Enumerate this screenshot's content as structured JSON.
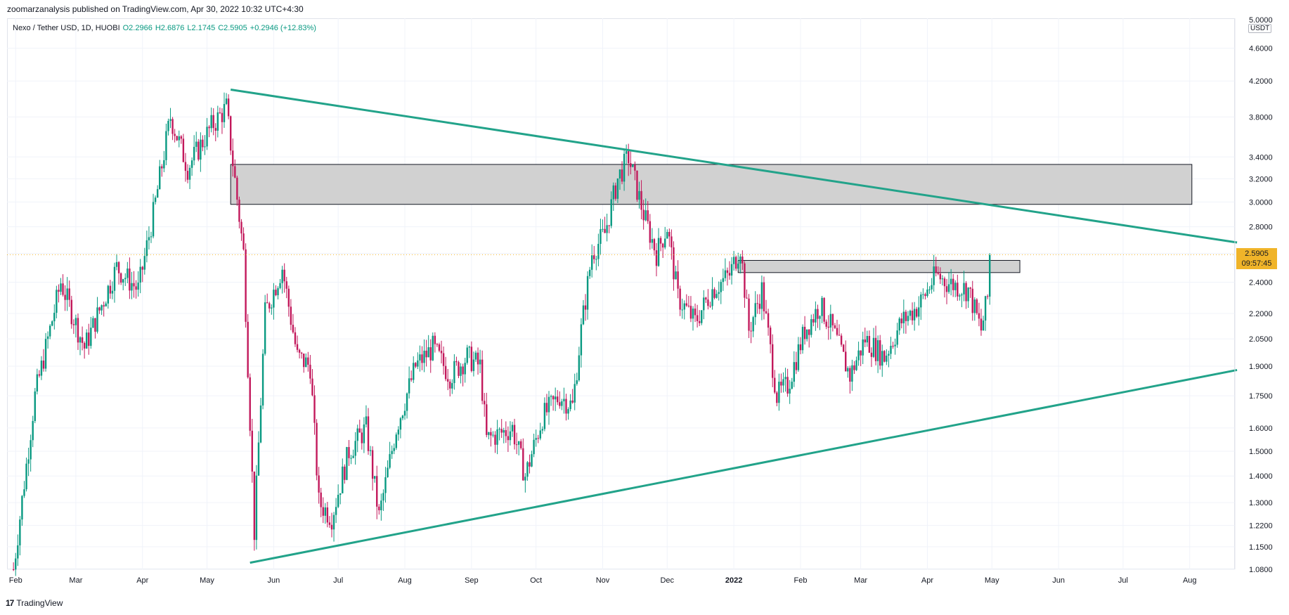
{
  "header": {
    "published": "zoomarzanalysis published on TradingView.com, Apr 30, 2022 10:32 UTC+4:30"
  },
  "legend": {
    "symbol": "Nexo / Tether USD, 1D, HUOBI",
    "open": "O2.2966",
    "high": "H2.6876",
    "low": "L2.1745",
    "close": "C2.5905",
    "change": "+0.2946 (+12.83%)"
  },
  "price_axis": {
    "unit": "USDT",
    "current_price": "2.5905",
    "countdown": "09:57:45",
    "top_label_partial": "5.0000"
  },
  "footer": {
    "brand": "TradingView",
    "logo_text": "17"
  },
  "colors": {
    "up": "#089981",
    "down": "#c2185b",
    "trendline": "#22a38a",
    "zone_fill": "#d1d1d1",
    "price_badge": "#f0b429"
  },
  "chart_data": {
    "type": "candlestick",
    "symbol": "Nexo / Tether USD",
    "interval": "1D",
    "exchange": "HUOBI",
    "scale": "log",
    "ylim": [
      1.08,
      5.0
    ],
    "y_ticks": [
      "1.0800",
      "1.1500",
      "1.2200",
      "1.3000",
      "1.4000",
      "1.5000",
      "1.6000",
      "1.7500",
      "1.9000",
      "2.0500",
      "2.2000",
      "2.4000",
      "2.6000",
      "2.8000",
      "3.0000",
      "3.2000",
      "3.4000",
      "3.8000",
      "4.2000",
      "4.6000"
    ],
    "x_ticks": [
      "Feb",
      "Mar",
      "Apr",
      "May",
      "Jun",
      "Jul",
      "Aug",
      "Sep",
      "Oct",
      "Nov",
      "Dec",
      "2022",
      "Feb",
      "Mar",
      "Apr",
      "May",
      "Jun",
      "Jul",
      "Aug"
    ],
    "x_tick_dates": [
      "2021-02-01",
      "2021-03-01",
      "2021-04-01",
      "2021-05-01",
      "2021-06-01",
      "2021-07-01",
      "2021-08-01",
      "2021-09-01",
      "2021-10-01",
      "2021-11-01",
      "2021-12-01",
      "2022-01-01",
      "2022-02-01",
      "2022-03-01",
      "2022-04-01",
      "2022-05-01",
      "2022-06-01",
      "2022-07-01",
      "2022-08-01"
    ],
    "xlim": [
      "2021-01-28",
      "2022-08-22"
    ],
    "last_close": 2.5905,
    "price_path": [
      {
        "date": "2021-01-31",
        "price": 1.08
      },
      {
        "date": "2021-02-10",
        "price": 1.75
      },
      {
        "date": "2021-02-22",
        "price": 2.4
      },
      {
        "date": "2021-03-05",
        "price": 2.0
      },
      {
        "date": "2021-03-20",
        "price": 2.5
      },
      {
        "date": "2021-03-30",
        "price": 2.35
      },
      {
        "date": "2021-04-06",
        "price": 2.9
      },
      {
        "date": "2021-04-14",
        "price": 3.8
      },
      {
        "date": "2021-04-22",
        "price": 3.3
      },
      {
        "date": "2021-05-03",
        "price": 3.7
      },
      {
        "date": "2021-05-10",
        "price": 3.9
      },
      {
        "date": "2021-05-18",
        "price": 2.6
      },
      {
        "date": "2021-05-23",
        "price": 1.2
      },
      {
        "date": "2021-05-28",
        "price": 2.2
      },
      {
        "date": "2021-06-05",
        "price": 2.5
      },
      {
        "date": "2021-06-12",
        "price": 1.95
      },
      {
        "date": "2021-06-18",
        "price": 1.9
      },
      {
        "date": "2021-06-22",
        "price": 1.3
      },
      {
        "date": "2021-06-28",
        "price": 1.25
      },
      {
        "date": "2021-07-06",
        "price": 1.5
      },
      {
        "date": "2021-07-14",
        "price": 1.6
      },
      {
        "date": "2021-07-20",
        "price": 1.25
      },
      {
        "date": "2021-07-28",
        "price": 1.6
      },
      {
        "date": "2021-08-06",
        "price": 1.9
      },
      {
        "date": "2021-08-14",
        "price": 2.0
      },
      {
        "date": "2021-08-22",
        "price": 1.85
      },
      {
        "date": "2021-08-30",
        "price": 1.95
      },
      {
        "date": "2021-09-05",
        "price": 1.9
      },
      {
        "date": "2021-09-08",
        "price": 1.55
      },
      {
        "date": "2021-09-20",
        "price": 1.6
      },
      {
        "date": "2021-09-26",
        "price": 1.4
      },
      {
        "date": "2021-10-04",
        "price": 1.65
      },
      {
        "date": "2021-10-12",
        "price": 1.75
      },
      {
        "date": "2021-10-18",
        "price": 1.7
      },
      {
        "date": "2021-10-22",
        "price": 2.1
      },
      {
        "date": "2021-10-27",
        "price": 2.6
      },
      {
        "date": "2021-11-02",
        "price": 2.75
      },
      {
        "date": "2021-11-08",
        "price": 3.2
      },
      {
        "date": "2021-11-13",
        "price": 3.4
      },
      {
        "date": "2021-11-20",
        "price": 2.9
      },
      {
        "date": "2021-11-26",
        "price": 2.6
      },
      {
        "date": "2021-12-01",
        "price": 2.8
      },
      {
        "date": "2021-12-06",
        "price": 2.3
      },
      {
        "date": "2021-12-14",
        "price": 2.15
      },
      {
        "date": "2021-12-22",
        "price": 2.35
      },
      {
        "date": "2021-12-30",
        "price": 2.45
      },
      {
        "date": "2022-01-04",
        "price": 2.65
      },
      {
        "date": "2022-01-08",
        "price": 2.1
      },
      {
        "date": "2022-01-14",
        "price": 2.35
      },
      {
        "date": "2022-01-21",
        "price": 1.75
      },
      {
        "date": "2022-01-26",
        "price": 1.8
      },
      {
        "date": "2022-02-03",
        "price": 2.1
      },
      {
        "date": "2022-02-10",
        "price": 2.25
      },
      {
        "date": "2022-02-16",
        "price": 2.1
      },
      {
        "date": "2022-02-24",
        "price": 1.85
      },
      {
        "date": "2022-03-03",
        "price": 2.05
      },
      {
        "date": "2022-03-12",
        "price": 1.95
      },
      {
        "date": "2022-03-20",
        "price": 2.15
      },
      {
        "date": "2022-03-28",
        "price": 2.25
      },
      {
        "date": "2022-04-05",
        "price": 2.45
      },
      {
        "date": "2022-04-10",
        "price": 2.4
      },
      {
        "date": "2022-04-20",
        "price": 2.35
      },
      {
        "date": "2022-04-26",
        "price": 2.1
      },
      {
        "date": "2022-04-29",
        "price": 2.3
      },
      {
        "date": "2022-04-30",
        "price": 2.5905
      }
    ],
    "zones": [
      {
        "name": "upper-resistance-zone",
        "start": "2021-05-12",
        "end": "2022-08-02",
        "top": 3.33,
        "bottom": 2.98
      },
      {
        "name": "lower-resistance-zone",
        "start": "2022-01-03",
        "end": "2022-05-14",
        "top": 2.55,
        "bottom": 2.465
      }
    ],
    "trendlines": [
      {
        "name": "descending-trendline",
        "x1": "2021-05-12",
        "y1": 4.1,
        "x2": "2022-08-23",
        "y2": 2.68
      },
      {
        "name": "ascending-trendline",
        "x1": "2021-05-21",
        "y1": 1.1,
        "x2": "2022-08-23",
        "y2": 1.88
      }
    ]
  }
}
